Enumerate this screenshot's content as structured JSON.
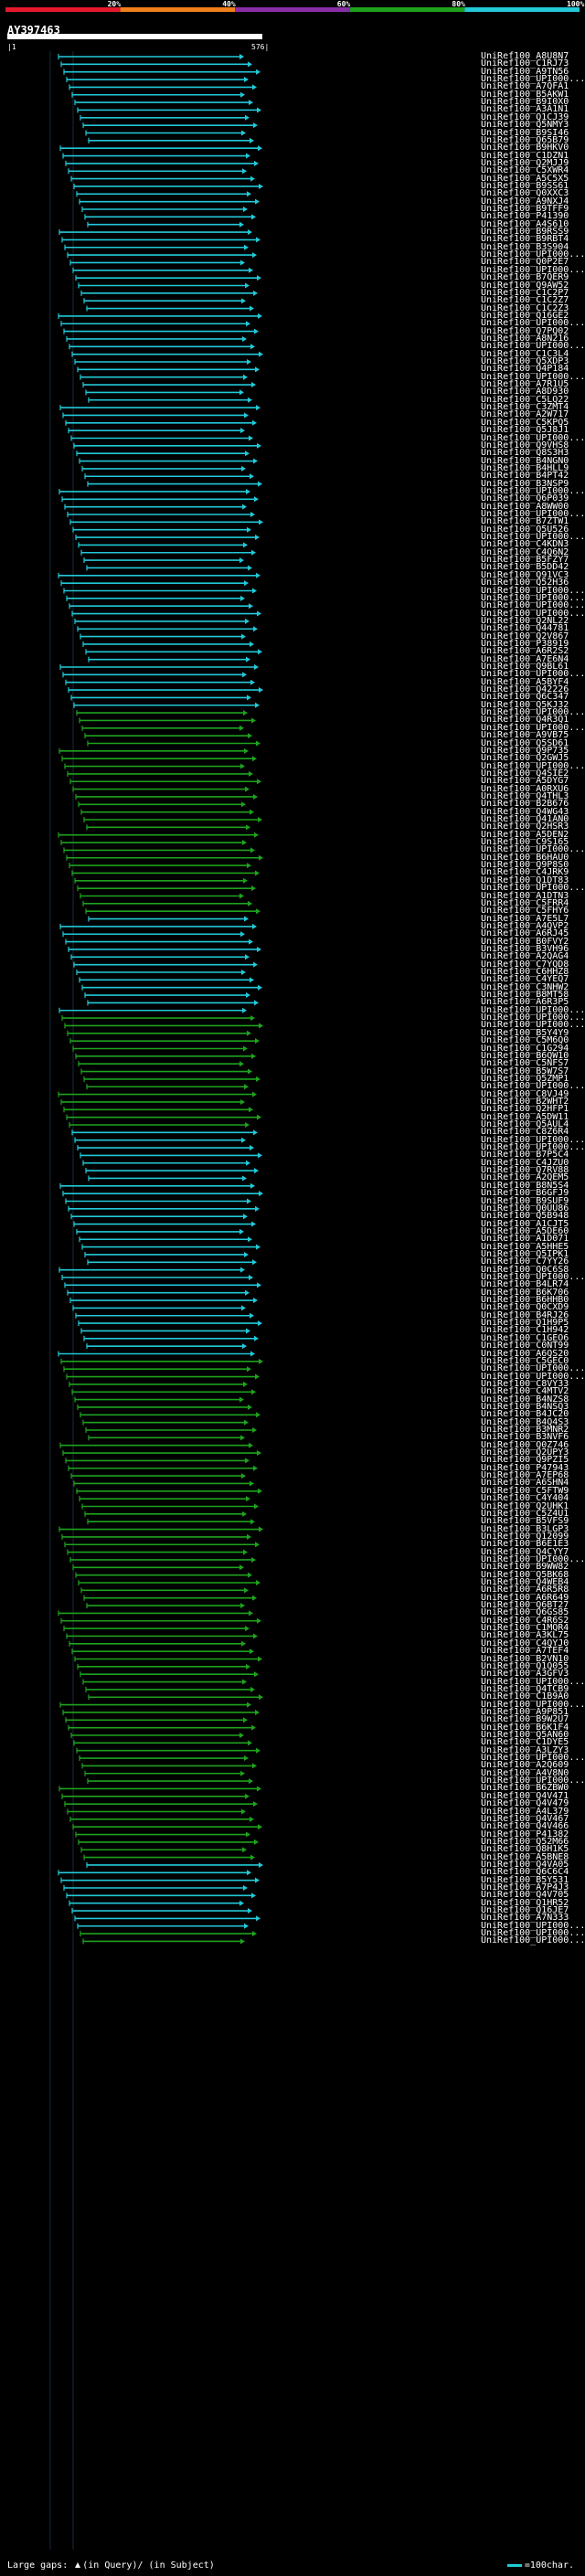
{
  "scale": {
    "ticks": [
      "20%",
      "40%",
      "60%",
      "80%",
      "100%"
    ],
    "segments": [
      {
        "color": "#e5192b"
      },
      {
        "color": "#f07f1c"
      },
      {
        "color": "#8a2ea6"
      },
      {
        "color": "#1ea21e"
      },
      {
        "color": "#22c9d8"
      }
    ]
  },
  "query": {
    "name": "AY397463",
    "start": "1",
    "end": "576"
  },
  "hits": [
    "UniRef100_A8U8N7",
    "UniRef100_C1RJ73",
    "UniRef100_A9TN56",
    "UniRef100_UPI000...",
    "UniRef100_A7QFA1",
    "UniRef100_B5AKW1",
    "UniRef100_B9I0X0",
    "UniRef100_A3A1N1",
    "UniRef100_Q1CJ39",
    "UniRef100_Q5NMY3",
    "UniRef100_B9SI46",
    "UniRef100_Q65B79",
    "UniRef100_B9HKV0",
    "UniRef100_C1DZN1",
    "UniRef100_Q2MJJ9",
    "UniRef100_C5XWR4",
    "UniRef100_A5C5X5",
    "UniRef100_B9SS61",
    "UniRef100_Q0XXC3",
    "UniRef100_A9NXJ4",
    "UniRef100_B9TFF9",
    "UniRef100_P41390",
    "UniRef100_A4S610",
    "UniRef100_B9RSS9",
    "UniRef100_B9RBT4",
    "UniRef100_B3S904",
    "UniRef100_UPI000...",
    "UniRef100_Q0P2E7",
    "UniRef100_UPI000...",
    "UniRef100_B7QER9",
    "UniRef100_Q9AW52",
    "UniRef100_C1C2P7",
    "UniRef100_C1C2Z7",
    "UniRef100_C1C2Z3",
    "UniRef100_Q16GE2",
    "UniRef100_UPI000...",
    "UniRef100_Q7PQ02",
    "UniRef100_A8N216",
    "UniRef100_UPI000...",
    "UniRef100_C1C3L4",
    "UniRef100_Q5XDP3",
    "UniRef100_Q4P184",
    "UniRef100_UPI000...",
    "UniRef100_A7R1U5",
    "UniRef100_A8D930",
    "UniRef100_C5LQ22",
    "UniRef100_C3ZMT4",
    "UniRef100_A2W717",
    "UniRef100_C5KPQ5",
    "UniRef100_Q5J8J1",
    "UniRef100_UPI000...",
    "UniRef100_Q9VHS8",
    "UniRef100_Q8S3H3",
    "UniRef100_B4NGN0",
    "UniRef100_B4HLL9",
    "UniRef100_B4PT42",
    "UniRef100_B3NSP9",
    "UniRef100_UPI000...",
    "UniRef100_Q6P039",
    "UniRef100_A8WW00",
    "UniRef100_UPI000...",
    "UniRef100_B7ZTW1",
    "UniRef100_Q5U526",
    "UniRef100_UPI000...",
    "UniRef100_C4KDN3",
    "UniRef100_C4Q6N2",
    "UniRef100_B5FZY7",
    "UniRef100_B5DD42",
    "UniRef100_Q91VC3",
    "UniRef100_Q52H36",
    "UniRef100_UPI000...",
    "UniRef100_UPI000...",
    "UniRef100_UPI000...",
    "UniRef100_UPI000...",
    "UniRef100_Q2NL22",
    "UniRef100_Q44781",
    "UniRef100_Q2V867",
    "UniRef100_P38919",
    "UniRef100_A6R2S2",
    "UniRef100_A7E6N4",
    "UniRef100_Q9BL61",
    "UniRef100_UPI000...",
    "UniRef100_A5BYF4",
    "UniRef100_Q42226",
    "UniRef100_Q6C347",
    "UniRef100_Q5KJ32",
    "UniRef100_UPI000...",
    "UniRef100_Q4R3Q1",
    "UniRef100_UPI000...",
    "UniRef100_A9VB75",
    "UniRef100_Q5SD61",
    "UniRef100_Q9P735",
    "UniRef100_Q2GWJ5",
    "UniRef100_UPI000...",
    "UniRef100_Q4SIE2",
    "UniRef100_A5DYG7",
    "UniRef100_A0RXU6",
    "UniRef100_Q4THL3",
    "UniRef100_B2B676",
    "UniRef100_Q4WG43",
    "UniRef100_Q41AN0",
    "UniRef100_Q2HSR3",
    "UniRef100_A5DEN2",
    "UniRef100_C9S165",
    "UniRef100_UPI000...",
    "UniRef100_B6HAU0",
    "UniRef100_Q9P8S0",
    "UniRef100_C4JRK9",
    "UniRef100_Q1DT83",
    "UniRef100_UPI000...",
    "UniRef100_A1DTN3",
    "UniRef100_C5FRR4",
    "UniRef100_C5FHY6",
    "UniRef100_A7E5L7",
    "UniRef100_A4QVP2",
    "UniRef100_A6RJ45",
    "UniRef100_B0FVY2",
    "UniRef100_B3VH96",
    "UniRef100_A2QAG4",
    "UniRef100_C7YQD8",
    "UniRef100_C6HHZ8",
    "UniRef100_C4YEQ7",
    "UniRef100_C3NHW2",
    "UniRef100_B8MT58",
    "UniRef100_A6R3P5",
    "UniRef100_UPI000...",
    "UniRef100_UPI000...",
    "UniRef100_UPI000...",
    "UniRef100_B5Y4Y9",
    "UniRef100_C5M6Q0",
    "UniRef100_C1G294",
    "UniRef100_B6QW10",
    "UniRef100_C5NFS7",
    "UniRef100_B5W7S7",
    "UniRef100_Q5ZMP1",
    "UniRef100_UPI000...",
    "UniRef100_C8VJ49",
    "UniRef100_B2WHT2",
    "UniRef100_Q2HFP1",
    "UniRef100_A5DW11",
    "UniRef100_Q5AUL4",
    "UniRef100_C8Z6R4",
    "UniRef100_UPI000...",
    "UniRef100_UPI000...",
    "UniRef100_B7P5C4",
    "UniRef100_C4JZU0",
    "UniRef100_Q7RV88",
    "UniRef100_A2QEM5",
    "UniRef100_B8N5S4",
    "UniRef100_B6GFJ9",
    "UniRef100_B9SUF9",
    "UniRef100_Q0UU86",
    "UniRef100_Q5B948",
    "UniRef100_A1CJT5",
    "UniRef100_A5DE60",
    "UniRef100_A1D071",
    "UniRef100_A5HHE5",
    "UniRef100_Q5IPK1",
    "UniRef100_C7YY26",
    "UniRef100_Q0C6S8",
    "UniRef100_UPI000...",
    "UniRef100_B4LR74",
    "UniRef100_B6K706",
    "UniRef100_B6HHB0",
    "UniRef100_Q0CXD9",
    "UniRef100_B4RJ26",
    "UniRef100_Q1H9P5",
    "UniRef100_C1H942",
    "UniRef100_C1GEO6",
    "UniRef100_C0NT99",
    "UniRef100_A6QS20",
    "UniRef100_C5GEC0",
    "UniRef100_UPI000...",
    "UniRef100_UPI000...",
    "UniRef100_C8VY33",
    "UniRef100_C4MTV2",
    "UniRef100_B4NZS8",
    "UniRef100_B4NSQ3",
    "UniRef100_B4JC20",
    "UniRef100_B4Q4S3",
    "UniRef100_B3MNR2",
    "UniRef100_B3NVF6",
    "UniRef100_Q0Z746",
    "UniRef100_Q2UPY3",
    "UniRef100_Q9PZI5",
    "UniRef100_P47943",
    "UniRef100_A7EP68",
    "UniRef100_A6SHN4",
    "UniRef100_C5FTW9",
    "UniRef100_C4Y404",
    "UniRef100_Q2UHK1",
    "UniRef100_C5Z4U1",
    "UniRef100_B5VFS9",
    "UniRef100_B3LGP3",
    "UniRef100_Q12099",
    "UniRef100_B6E1E3",
    "UniRef100_Q4CYY7",
    "UniRef100_UPI000...",
    "UniRef100_B9WW82",
    "UniRef100_Q5BK68",
    "UniRef100_Q4WEB4",
    "UniRef100_A6R5R8",
    "UniRef100_A6R649",
    "UniRef100_Q6BT27",
    "UniRef100_Q6GS85",
    "UniRef100_C4R6S2",
    "UniRef100_C1MQR4",
    "UniRef100_A3KL75",
    "UniRef100_C4QYJ0",
    "UniRef100_A7TEF4",
    "UniRef100_B2VN10",
    "UniRef100_Q1Q055",
    "UniRef100_A3GFV3",
    "UniRef100_UPI000...",
    "UniRef100_Q4TCB9",
    "UniRef100_C1B9A0",
    "UniRef100_UPI000...",
    "UniRef100_A9P851",
    "UniRef100_B9W2U7",
    "UniRef100_B6K1F4",
    "UniRef100_Q5AN60",
    "UniRef100_C1DYE5",
    "UniRef100_A3LZY3",
    "UniRef100_UPI000...",
    "UniRef100_A2Q609",
    "UniRef100_A4V8N0",
    "UniRef100_UPI000...",
    "UniRef100_B6ZBW0",
    "UniRef100_Q4V471",
    "UniRef100_Q4V479",
    "UniRef100_A4L379",
    "UniRef100_Q4V467",
    "UniRef100_Q4V466",
    "UniRef100_P41382",
    "UniRef100_Q52M66",
    "UniRef100_Q8H1K5",
    "UniRef100_A5BNE8",
    "UniRef100_Q4VA05",
    "UniRef100_Q6C6C4",
    "UniRef100_B5Y531",
    "UniRef100_A7P4J3",
    "UniRef100_Q4V705",
    "UniRef100_Q1HR52",
    "UniRef100_Q16JE7",
    "UniRef100_A7N333",
    "UniRef100_UPI000...",
    "UniRef100_UPI000...",
    "UniRef100_UPI000..."
  ],
  "footer": {
    "gaps_label": "Large gaps:",
    "query_gap": "(in Query)/",
    "subject_gap": "(in Subject)",
    "legend_label": "=100char."
  }
}
